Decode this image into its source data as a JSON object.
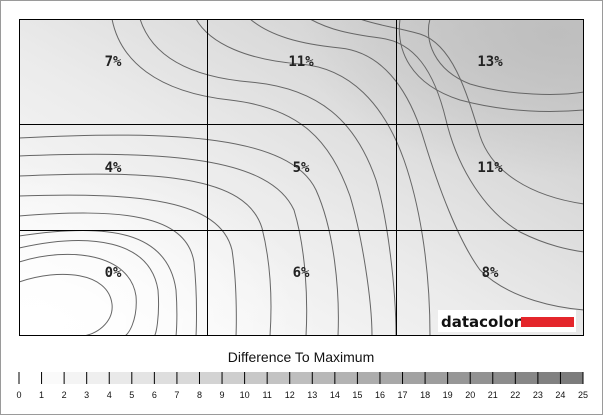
{
  "chart_data": {
    "type": "heatmap",
    "grid": {
      "rows": 3,
      "cols": 3
    },
    "cells": [
      [
        "7%",
        "11%",
        "13%"
      ],
      [
        "4%",
        "5%",
        "11%"
      ],
      [
        "0%",
        "6%",
        "8%"
      ]
    ],
    "values": [
      [
        7,
        11,
        13
      ],
      [
        4,
        5,
        11
      ],
      [
        0,
        6,
        8
      ]
    ],
    "legend": {
      "title": "Difference To Maximum",
      "min": 0,
      "max": 25,
      "ticks": [
        "0",
        "1",
        "2",
        "3",
        "4",
        "5",
        "6",
        "7",
        "8",
        "9",
        "10",
        "11",
        "12",
        "13",
        "14",
        "15",
        "16",
        "17",
        "18",
        "19",
        "20",
        "21",
        "22",
        "23",
        "24",
        "25"
      ]
    },
    "brand": "datacolor",
    "colors": {
      "brand_bar": "#e4262b",
      "contour": "#666666",
      "grid": "#000000",
      "lightest": "#ffffff",
      "darkest": "#7c7c7c"
    }
  }
}
